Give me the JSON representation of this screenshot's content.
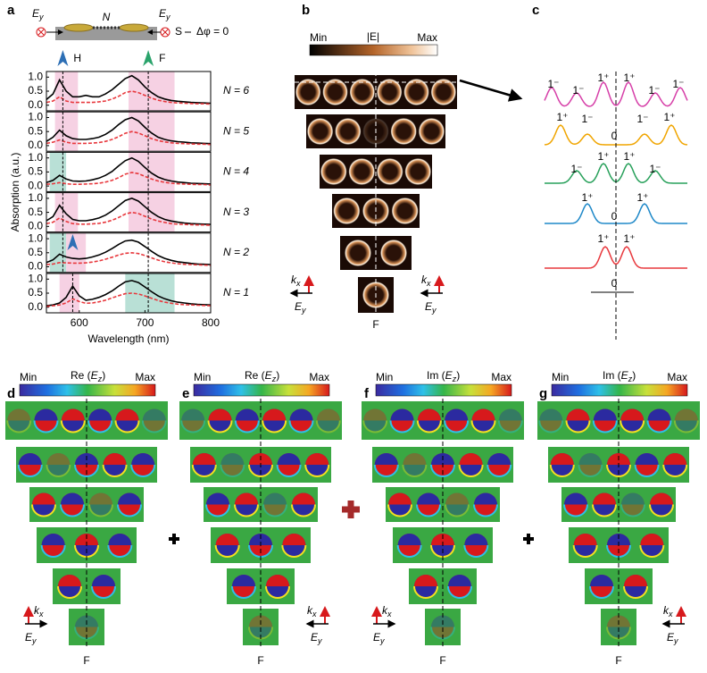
{
  "panel_labels": [
    "a",
    "b",
    "c",
    "d",
    "e",
    "f",
    "g"
  ],
  "wavevector": {
    "main": "k",
    "sub": "x"
  },
  "field": {
    "main": "E",
    "sub": "y"
  },
  "schematic": {
    "count": "N",
    "source": "S",
    "phase": "Δφ = 0"
  },
  "chart_data": {
    "type": "line",
    "x_label": "Wavelength (nm)",
    "y_label": "Absorption (a.u.)",
    "xlim": [
      550,
      800
    ],
    "xticks": [
      600,
      700,
      800
    ],
    "ylim": [
      -0.2,
      1.2
    ],
    "yticks": [
      {
        "value": 0,
        "label": "0.0"
      },
      {
        "value": 0.5,
        "label": "0.5"
      },
      {
        "value": 1,
        "label": "1.0"
      }
    ],
    "modes": [
      "H",
      "F"
    ],
    "x": [
      550,
      560,
      570,
      580,
      590,
      600,
      610,
      620,
      630,
      640,
      650,
      660,
      670,
      680,
      690,
      700,
      710,
      720,
      730,
      740,
      750,
      760,
      770,
      780,
      790,
      800
    ],
    "panels": [
      {
        "label": "N = 6",
        "series": [
          {
            "color": "#000000",
            "values": [
              0.2,
              0.4,
              0.9,
              0.5,
              0.3,
              0.3,
              0.35,
              0.3,
              0.3,
              0.4,
              0.55,
              0.75,
              0.95,
              1.05,
              0.9,
              0.65,
              0.45,
              0.3,
              0.22,
              0.17,
              0.14,
              0.12,
              0.1,
              0.09,
              0.08,
              0.07
            ]
          },
          {
            "color": "#e8383d",
            "dash": true,
            "values": [
              0.1,
              0.15,
              0.3,
              0.15,
              0.1,
              0.1,
              0.1,
              0.1,
              0.12,
              0.15,
              0.22,
              0.32,
              0.45,
              0.5,
              0.45,
              0.35,
              0.25,
              0.18,
              0.13,
              0.1,
              0.08,
              0.07,
              0.06,
              0.05,
              0.05,
              0.04
            ]
          }
        ]
      },
      {
        "label": "N = 5",
        "series": [
          {
            "color": "#000000",
            "values": [
              0.15,
              0.3,
              0.55,
              0.35,
              0.25,
              0.22,
              0.22,
              0.25,
              0.3,
              0.4,
              0.55,
              0.75,
              0.92,
              1.0,
              0.88,
              0.65,
              0.45,
              0.3,
              0.22,
              0.17,
              0.14,
              0.12,
              0.1,
              0.09,
              0.08,
              0.07
            ]
          },
          {
            "color": "#e8383d",
            "dash": true,
            "values": [
              0.08,
              0.12,
              0.2,
              0.12,
              0.08,
              0.08,
              0.08,
              0.09,
              0.11,
              0.15,
              0.22,
              0.32,
              0.44,
              0.5,
              0.45,
              0.35,
              0.25,
              0.18,
              0.13,
              0.1,
              0.08,
              0.07,
              0.06,
              0.05,
              0.05,
              0.04
            ]
          }
        ]
      },
      {
        "label": "N = 4",
        "series": [
          {
            "color": "#000000",
            "values": [
              0.12,
              0.2,
              0.38,
              0.25,
              0.18,
              0.17,
              0.18,
              0.22,
              0.28,
              0.38,
              0.52,
              0.72,
              0.9,
              1.0,
              0.88,
              0.66,
              0.46,
              0.32,
              0.23,
              0.18,
              0.14,
              0.12,
              0.1,
              0.09,
              0.08,
              0.07
            ]
          },
          {
            "color": "#e8383d",
            "dash": true,
            "values": [
              0.06,
              0.08,
              0.12,
              0.08,
              0.06,
              0.06,
              0.07,
              0.08,
              0.1,
              0.14,
              0.2,
              0.3,
              0.42,
              0.48,
              0.44,
              0.34,
              0.25,
              0.18,
              0.13,
              0.1,
              0.08,
              0.07,
              0.06,
              0.05,
              0.05,
              0.04
            ]
          }
        ]
      },
      {
        "label": "N = 3",
        "series": [
          {
            "color": "#000000",
            "values": [
              0.2,
              0.35,
              0.75,
              0.45,
              0.25,
              0.2,
              0.2,
              0.24,
              0.3,
              0.4,
              0.55,
              0.74,
              0.92,
              1.0,
              0.9,
              0.7,
              0.5,
              0.35,
              0.25,
              0.19,
              0.15,
              0.12,
              0.1,
              0.09,
              0.08,
              0.07
            ]
          },
          {
            "color": "#e8383d",
            "dash": true,
            "values": [
              0.1,
              0.15,
              0.3,
              0.18,
              0.1,
              0.08,
              0.08,
              0.09,
              0.11,
              0.15,
              0.22,
              0.32,
              0.44,
              0.5,
              0.46,
              0.36,
              0.26,
              0.19,
              0.14,
              0.1,
              0.08,
              0.07,
              0.06,
              0.05,
              0.05,
              0.04
            ]
          }
        ]
      },
      {
        "label": "N = 2",
        "series": [
          {
            "color": "#000000",
            "values": [
              0.15,
              0.25,
              0.45,
              0.35,
              0.3,
              0.28,
              0.3,
              0.35,
              0.42,
              0.52,
              0.65,
              0.8,
              0.92,
              0.95,
              0.88,
              0.72,
              0.55,
              0.4,
              0.3,
              0.23,
              0.18,
              0.15,
              0.12,
              0.1,
              0.09,
              0.08
            ]
          },
          {
            "color": "#e8383d",
            "dash": true,
            "values": [
              0.08,
              0.1,
              0.15,
              0.14,
              0.13,
              0.13,
              0.14,
              0.17,
              0.21,
              0.27,
              0.34,
              0.42,
              0.48,
              0.5,
              0.47,
              0.4,
              0.32,
              0.24,
              0.18,
              0.14,
              0.11,
              0.09,
              0.08,
              0.07,
              0.06,
              0.05
            ]
          }
        ]
      },
      {
        "label": "N = 1",
        "series": [
          {
            "color": "#000000",
            "values": [
              0.05,
              0.08,
              0.15,
              0.35,
              0.75,
              0.4,
              0.25,
              0.28,
              0.35,
              0.45,
              0.58,
              0.75,
              0.9,
              0.95,
              0.88,
              0.72,
              0.55,
              0.4,
              0.3,
              0.23,
              0.18,
              0.15,
              0.12,
              0.1,
              0.09,
              0.08
            ]
          },
          {
            "color": "#e8383d",
            "dash": true,
            "values": [
              0.03,
              0.05,
              0.08,
              0.15,
              0.3,
              0.2,
              0.14,
              0.15,
              0.19,
              0.25,
              0.33,
              0.41,
              0.48,
              0.5,
              0.47,
              0.4,
              0.32,
              0.24,
              0.18,
              0.14,
              0.11,
              0.09,
              0.08,
              0.07,
              0.06,
              0.05
            ]
          }
        ]
      }
    ]
  },
  "panel_b": {
    "colorbar": {
      "title": "|E|",
      "min": "Min",
      "max": "Max"
    },
    "mode": "F"
  },
  "panel_c": {
    "rows": [
      [
        "1⁻",
        "1⁻",
        "1⁺",
        "1⁺",
        "1⁻",
        "1⁻"
      ],
      [
        "1⁺",
        "1⁻",
        "0",
        "1⁻",
        "1⁺"
      ],
      [
        "1⁻",
        "1⁺",
        "1⁺",
        "1⁻"
      ],
      [
        "1⁺",
        "0",
        "1⁺"
      ],
      [
        "1⁺",
        "1⁺"
      ],
      [
        "0"
      ]
    ]
  },
  "fields": [
    {
      "title": {
        "pre": "Re (",
        "main": "E",
        "sub": "z",
        "post": ")"
      },
      "min": "Min",
      "max": "Max",
      "mode": "F"
    },
    {
      "title": {
        "pre": "Re (",
        "main": "E",
        "sub": "z",
        "post": ")"
      },
      "min": "Min",
      "max": "Max",
      "mode": "F"
    },
    {
      "title": {
        "pre": "Im (",
        "main": "E",
        "sub": "z",
        "post": ")"
      },
      "min": "Min",
      "max": "Max",
      "mode": "F"
    },
    {
      "title": {
        "pre": "Im (",
        "main": "E",
        "sub": "z",
        "post": ")"
      },
      "min": "Min",
      "max": "Max",
      "mode": "F"
    }
  ]
}
